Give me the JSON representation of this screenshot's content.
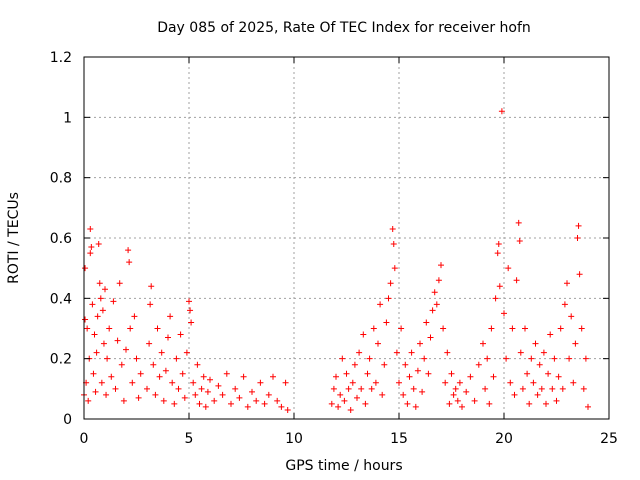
{
  "chart_data": {
    "type": "scatter",
    "title": "Day 085 of 2025, Rate Of TEC Index for receiver hofn",
    "xlabel": "GPS time / hours",
    "ylabel": "ROTI / TECUs",
    "xlim": [
      0,
      25
    ],
    "ylim": [
      0,
      1.2
    ],
    "x_ticks": [
      0,
      5,
      10,
      15,
      20,
      25
    ],
    "y_ticks": [
      0,
      0.2,
      0.4,
      0.6,
      0.8,
      1,
      1.2
    ],
    "x_tick_labels": [
      "0",
      "5",
      "10",
      "15",
      "20",
      "25"
    ],
    "y_tick_labels": [
      "0",
      "0.2",
      "0.4",
      "0.6",
      "0.8",
      "1",
      "1.2"
    ],
    "grid": true,
    "marker": "+",
    "color": "#ff0000",
    "series": [
      {
        "name": "ROTI",
        "points": [
          [
            0.0,
            0.08
          ],
          [
            0.05,
            0.33
          ],
          [
            0.05,
            0.5
          ],
          [
            0.1,
            0.12
          ],
          [
            0.15,
            0.3
          ],
          [
            0.2,
            0.06
          ],
          [
            0.25,
            0.2
          ],
          [
            0.3,
            0.55
          ],
          [
            0.3,
            0.63
          ],
          [
            0.35,
            0.57
          ],
          [
            0.4,
            0.38
          ],
          [
            0.45,
            0.15
          ],
          [
            0.5,
            0.28
          ],
          [
            0.55,
            0.09
          ],
          [
            0.6,
            0.22
          ],
          [
            0.65,
            0.34
          ],
          [
            0.7,
            0.58
          ],
          [
            0.75,
            0.45
          ],
          [
            0.8,
            0.4
          ],
          [
            0.85,
            0.12
          ],
          [
            0.9,
            0.36
          ],
          [
            0.95,
            0.25
          ],
          [
            1.0,
            0.43
          ],
          [
            1.05,
            0.08
          ],
          [
            1.1,
            0.2
          ],
          [
            1.2,
            0.3
          ],
          [
            1.3,
            0.14
          ],
          [
            1.4,
            0.39
          ],
          [
            1.5,
            0.1
          ],
          [
            1.6,
            0.26
          ],
          [
            1.7,
            0.45
          ],
          [
            1.8,
            0.18
          ],
          [
            1.9,
            0.06
          ],
          [
            2.0,
            0.23
          ],
          [
            2.1,
            0.56
          ],
          [
            2.15,
            0.52
          ],
          [
            2.2,
            0.3
          ],
          [
            2.3,
            0.12
          ],
          [
            2.4,
            0.34
          ],
          [
            2.5,
            0.2
          ],
          [
            2.6,
            0.07
          ],
          [
            2.7,
            0.15
          ],
          [
            3.0,
            0.1
          ],
          [
            3.1,
            0.25
          ],
          [
            3.15,
            0.38
          ],
          [
            3.2,
            0.44
          ],
          [
            3.3,
            0.18
          ],
          [
            3.4,
            0.08
          ],
          [
            3.5,
            0.3
          ],
          [
            3.6,
            0.14
          ],
          [
            3.7,
            0.22
          ],
          [
            3.8,
            0.06
          ],
          [
            3.9,
            0.16
          ],
          [
            4.0,
            0.27
          ],
          [
            4.1,
            0.34
          ],
          [
            4.2,
            0.12
          ],
          [
            4.3,
            0.05
          ],
          [
            4.4,
            0.2
          ],
          [
            4.5,
            0.1
          ],
          [
            4.6,
            0.28
          ],
          [
            4.7,
            0.15
          ],
          [
            4.8,
            0.07
          ],
          [
            4.9,
            0.22
          ],
          [
            5.0,
            0.39
          ],
          [
            5.05,
            0.36
          ],
          [
            5.1,
            0.32
          ],
          [
            5.2,
            0.12
          ],
          [
            5.3,
            0.08
          ],
          [
            5.4,
            0.18
          ],
          [
            5.5,
            0.05
          ],
          [
            5.6,
            0.1
          ],
          [
            5.7,
            0.14
          ],
          [
            5.8,
            0.04
          ],
          [
            5.9,
            0.09
          ],
          [
            6.0,
            0.13
          ],
          [
            6.2,
            0.06
          ],
          [
            6.4,
            0.11
          ],
          [
            6.6,
            0.08
          ],
          [
            6.8,
            0.15
          ],
          [
            7.0,
            0.05
          ],
          [
            7.2,
            0.1
          ],
          [
            7.4,
            0.07
          ],
          [
            7.6,
            0.14
          ],
          [
            7.8,
            0.04
          ],
          [
            8.0,
            0.09
          ],
          [
            8.2,
            0.06
          ],
          [
            8.4,
            0.12
          ],
          [
            8.6,
            0.05
          ],
          [
            8.8,
            0.08
          ],
          [
            9.0,
            0.14
          ],
          [
            9.2,
            0.06
          ],
          [
            9.4,
            0.04
          ],
          [
            9.6,
            0.12
          ],
          [
            9.7,
            0.03
          ],
          [
            11.8,
            0.05
          ],
          [
            11.9,
            0.1
          ],
          [
            12.0,
            0.14
          ],
          [
            12.1,
            0.04
          ],
          [
            12.2,
            0.08
          ],
          [
            12.3,
            0.2
          ],
          [
            12.4,
            0.06
          ],
          [
            12.5,
            0.15
          ],
          [
            12.6,
            0.1
          ],
          [
            12.7,
            0.03
          ],
          [
            12.8,
            0.12
          ],
          [
            12.9,
            0.18
          ],
          [
            13.0,
            0.07
          ],
          [
            13.1,
            0.22
          ],
          [
            13.2,
            0.1
          ],
          [
            13.3,
            0.28
          ],
          [
            13.4,
            0.05
          ],
          [
            13.5,
            0.15
          ],
          [
            13.6,
            0.2
          ],
          [
            13.7,
            0.1
          ],
          [
            13.8,
            0.3
          ],
          [
            13.9,
            0.12
          ],
          [
            14.0,
            0.25
          ],
          [
            14.1,
            0.38
          ],
          [
            14.2,
            0.08
          ],
          [
            14.3,
            0.18
          ],
          [
            14.4,
            0.32
          ],
          [
            14.5,
            0.4
          ],
          [
            14.6,
            0.45
          ],
          [
            14.7,
            0.63
          ],
          [
            14.75,
            0.58
          ],
          [
            14.8,
            0.5
          ],
          [
            14.9,
            0.22
          ],
          [
            15.0,
            0.12
          ],
          [
            15.1,
            0.3
          ],
          [
            15.2,
            0.08
          ],
          [
            15.3,
            0.18
          ],
          [
            15.4,
            0.05
          ],
          [
            15.5,
            0.14
          ],
          [
            15.6,
            0.22
          ],
          [
            15.7,
            0.1
          ],
          [
            15.8,
            0.04
          ],
          [
            15.9,
            0.16
          ],
          [
            16.0,
            0.25
          ],
          [
            16.1,
            0.09
          ],
          [
            16.2,
            0.2
          ],
          [
            16.3,
            0.32
          ],
          [
            16.4,
            0.15
          ],
          [
            16.5,
            0.27
          ],
          [
            16.6,
            0.36
          ],
          [
            16.7,
            0.42
          ],
          [
            16.8,
            0.38
          ],
          [
            16.9,
            0.46
          ],
          [
            17.0,
            0.51
          ],
          [
            17.1,
            0.3
          ],
          [
            17.2,
            0.12
          ],
          [
            17.3,
            0.22
          ],
          [
            17.4,
            0.05
          ],
          [
            17.5,
            0.15
          ],
          [
            17.6,
            0.08
          ],
          [
            17.7,
            0.1
          ],
          [
            17.8,
            0.06
          ],
          [
            17.9,
            0.12
          ],
          [
            18.0,
            0.04
          ],
          [
            18.2,
            0.09
          ],
          [
            18.4,
            0.14
          ],
          [
            18.6,
            0.06
          ],
          [
            18.8,
            0.18
          ],
          [
            19.0,
            0.25
          ],
          [
            19.1,
            0.1
          ],
          [
            19.2,
            0.2
          ],
          [
            19.3,
            0.05
          ],
          [
            19.4,
            0.3
          ],
          [
            19.5,
            0.14
          ],
          [
            19.6,
            0.4
          ],
          [
            19.7,
            0.55
          ],
          [
            19.75,
            0.58
          ],
          [
            19.8,
            0.44
          ],
          [
            19.9,
            1.02
          ],
          [
            20.0,
            0.35
          ],
          [
            20.1,
            0.2
          ],
          [
            20.2,
            0.5
          ],
          [
            20.3,
            0.12
          ],
          [
            20.4,
            0.3
          ],
          [
            20.5,
            0.08
          ],
          [
            20.6,
            0.46
          ],
          [
            20.7,
            0.65
          ],
          [
            20.75,
            0.59
          ],
          [
            20.8,
            0.22
          ],
          [
            20.9,
            0.1
          ],
          [
            21.0,
            0.3
          ],
          [
            21.1,
            0.15
          ],
          [
            21.2,
            0.05
          ],
          [
            21.3,
            0.2
          ],
          [
            21.4,
            0.12
          ],
          [
            21.5,
            0.25
          ],
          [
            21.6,
            0.08
          ],
          [
            21.7,
            0.18
          ],
          [
            21.8,
            0.1
          ],
          [
            21.9,
            0.22
          ],
          [
            22.0,
            0.05
          ],
          [
            22.1,
            0.15
          ],
          [
            22.2,
            0.28
          ],
          [
            22.3,
            0.1
          ],
          [
            22.4,
            0.2
          ],
          [
            22.5,
            0.06
          ],
          [
            22.6,
            0.14
          ],
          [
            22.7,
            0.3
          ],
          [
            22.8,
            0.1
          ],
          [
            22.9,
            0.38
          ],
          [
            23.0,
            0.45
          ],
          [
            23.1,
            0.2
          ],
          [
            23.2,
            0.34
          ],
          [
            23.3,
            0.12
          ],
          [
            23.4,
            0.25
          ],
          [
            23.5,
            0.6
          ],
          [
            23.55,
            0.64
          ],
          [
            23.6,
            0.48
          ],
          [
            23.7,
            0.3
          ],
          [
            23.8,
            0.1
          ],
          [
            23.9,
            0.2
          ],
          [
            24.0,
            0.04
          ]
        ]
      }
    ]
  }
}
